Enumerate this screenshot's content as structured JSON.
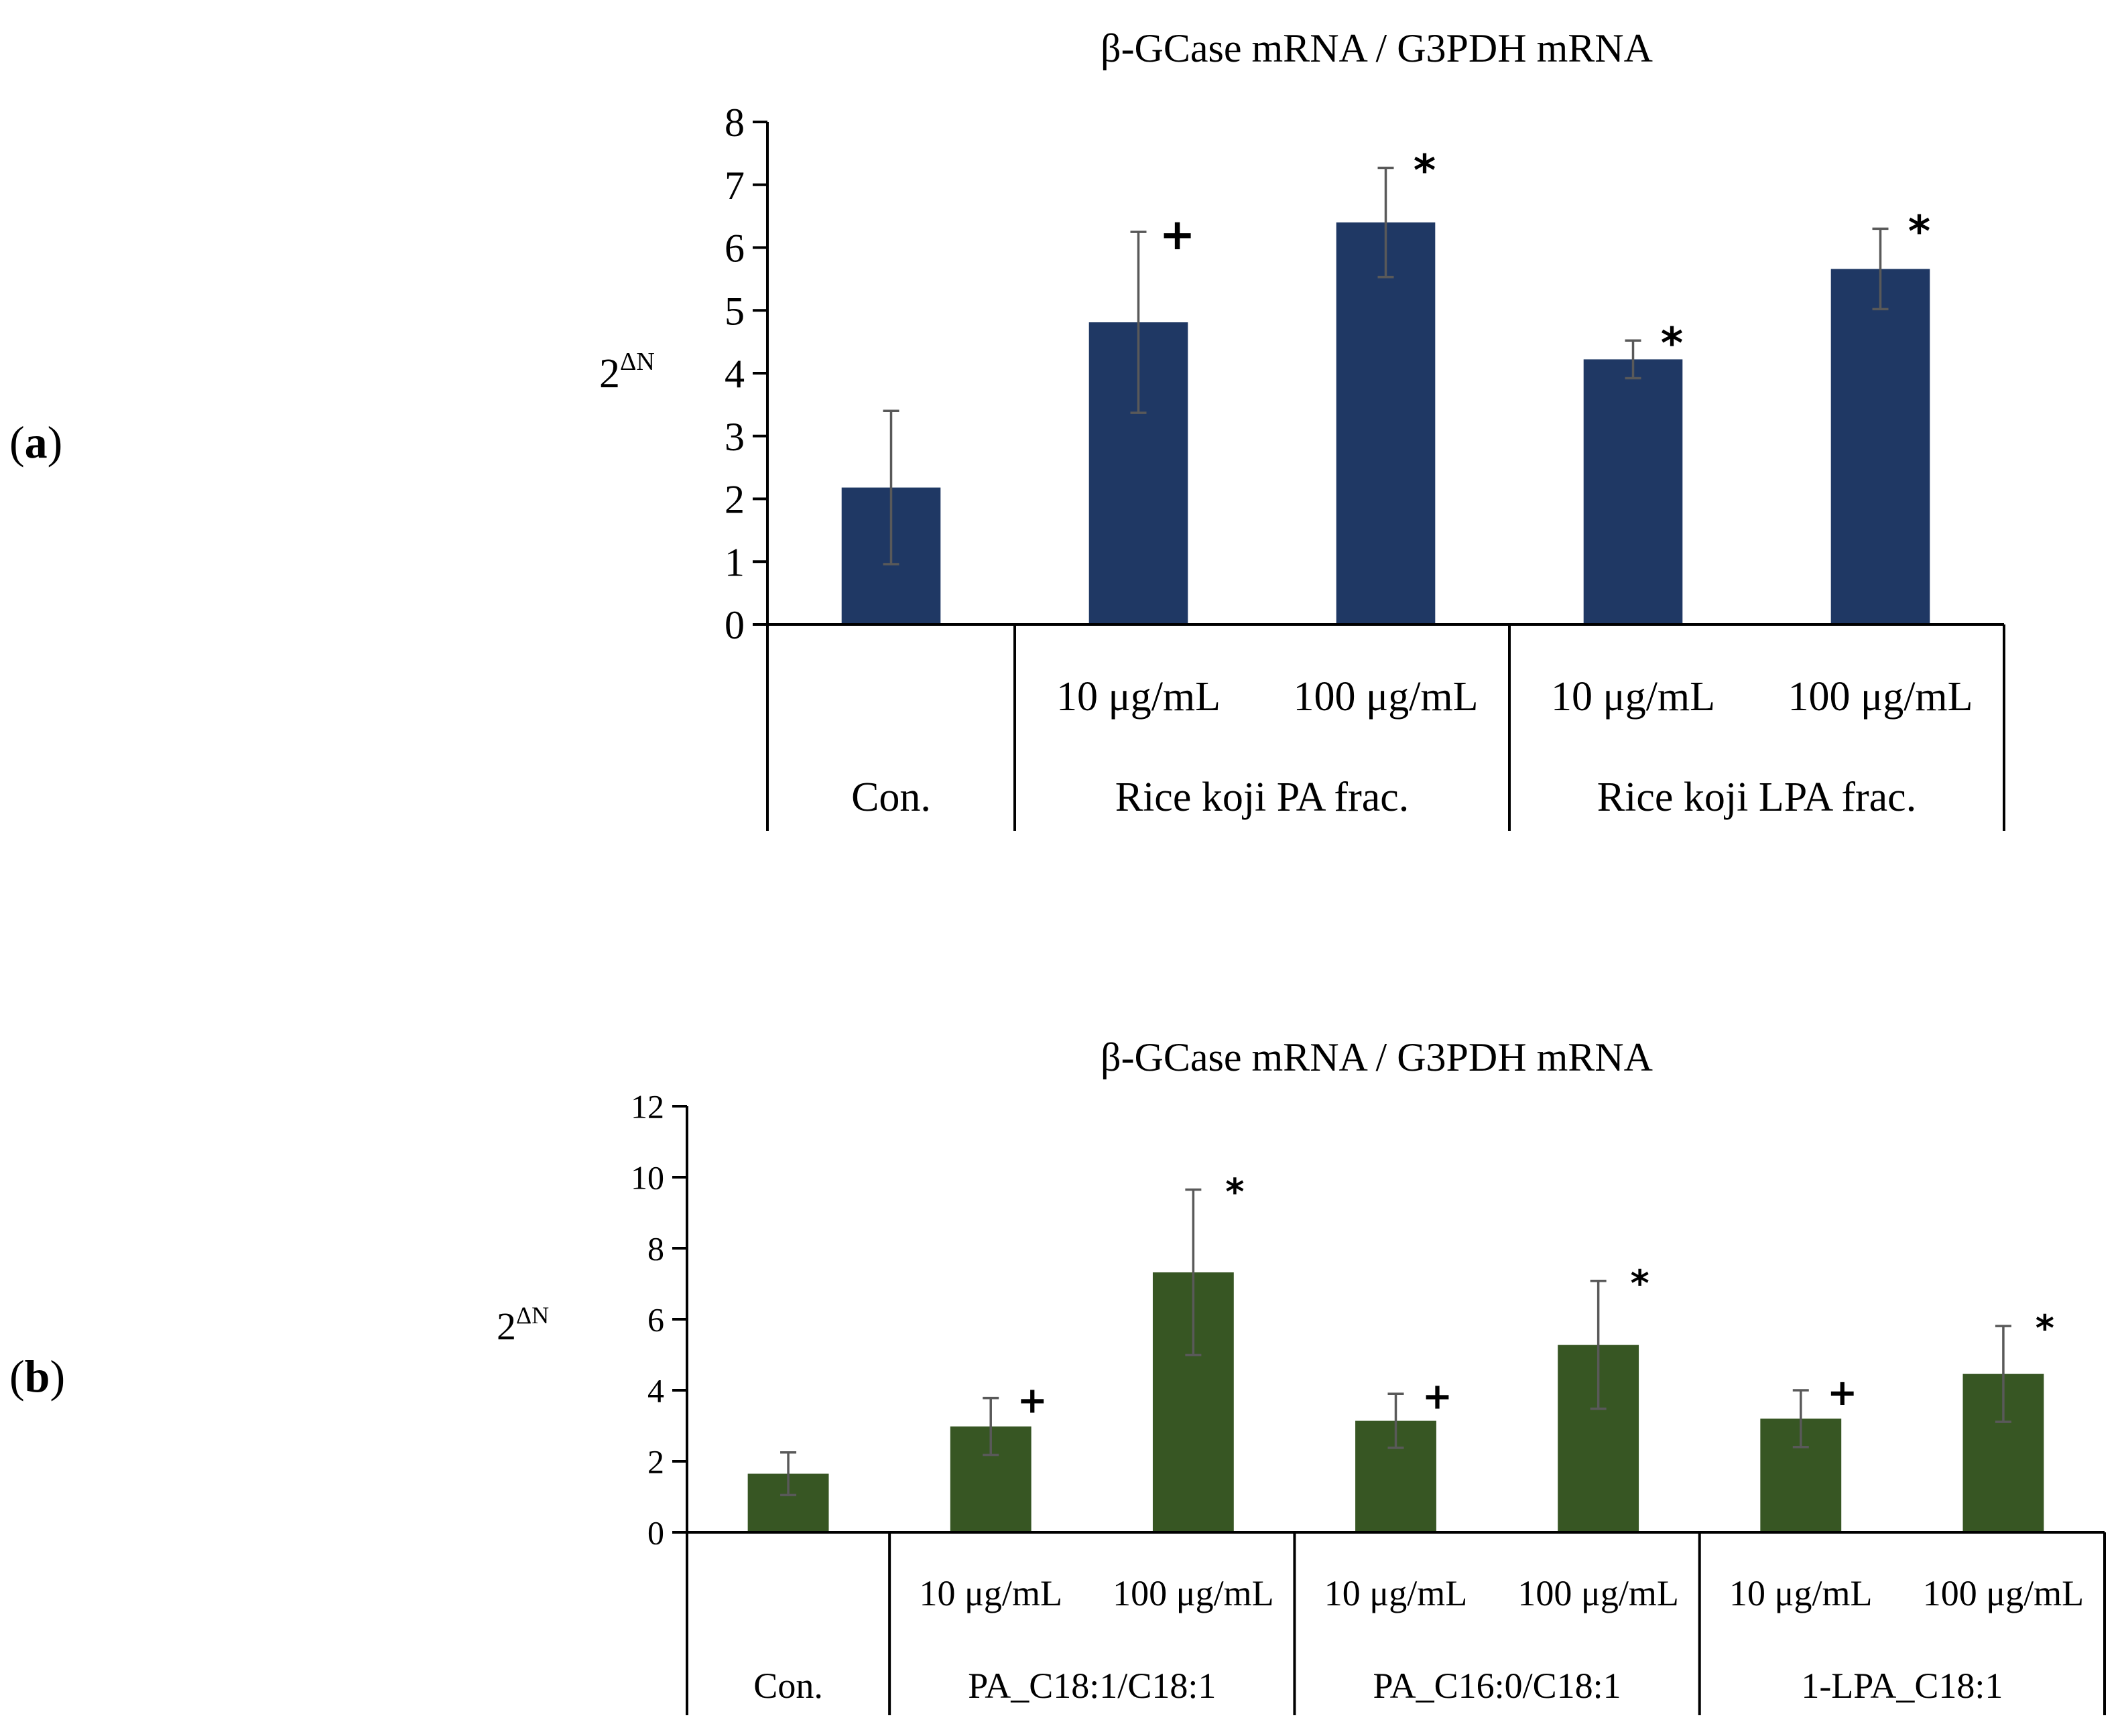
{
  "panels": [
    {
      "label_open": "(",
      "label_letter": "a",
      "label_close": ")"
    },
    {
      "label_open": "(",
      "label_letter": "b",
      "label_close": ")"
    }
  ],
  "chart_data": [
    {
      "type": "bar",
      "title": "β-GCase mRNA / G3PDH mRNA",
      "ylabel_base": "2",
      "ylabel_sup": "ΔN",
      "ylim": [
        0,
        8
      ],
      "yticks": [
        0,
        1,
        2,
        3,
        4,
        5,
        6,
        7,
        8
      ],
      "grid": false,
      "bar_color": "#1F3864",
      "categories": [
        "Con.",
        "10 μg/mL",
        "100 μg/mL",
        "10 μg/mL",
        "100 μg/mL"
      ],
      "groups": [
        {
          "label": "Con.",
          "bars": [
            0
          ]
        },
        {
          "label": "Rice koji PA frac.",
          "bars": [
            1,
            2
          ]
        },
        {
          "label": "Rice koji LPA frac.",
          "bars": [
            3,
            4
          ]
        }
      ],
      "values": [
        2.18,
        4.81,
        6.4,
        4.22,
        5.66
      ],
      "errors": [
        1.22,
        1.44,
        0.87,
        0.3,
        0.64
      ],
      "significance": [
        "",
        "+",
        "*",
        "*",
        "*"
      ]
    },
    {
      "type": "bar",
      "title": "β-GCase mRNA / G3PDH mRNA",
      "ylabel_base": "2",
      "ylabel_sup": "ΔN",
      "ylim": [
        0,
        12
      ],
      "yticks": [
        0,
        2,
        4,
        6,
        8,
        10,
        12
      ],
      "grid": false,
      "bar_color": "#375623",
      "categories": [
        "Con.",
        "10 μg/mL",
        "100 μg/mL",
        "10 μg/mL",
        "100 μg/mL",
        "10 μg/mL",
        "100 μg/mL"
      ],
      "groups": [
        {
          "label": "Con.",
          "bars": [
            0
          ]
        },
        {
          "label": "PA_C18:1/C18:1",
          "bars": [
            1,
            2
          ]
        },
        {
          "label": "PA_C16:0/C18:1",
          "bars": [
            3,
            4
          ]
        },
        {
          "label": "1-LPA_C18:1",
          "bars": [
            5,
            6
          ]
        }
      ],
      "values": [
        1.65,
        2.98,
        7.32,
        3.14,
        5.28,
        3.2,
        4.46
      ],
      "errors": [
        0.6,
        0.8,
        2.33,
        0.76,
        1.8,
        0.8,
        1.35
      ],
      "significance": [
        "",
        "+",
        "*",
        "+",
        "*",
        "+",
        "*"
      ]
    }
  ]
}
